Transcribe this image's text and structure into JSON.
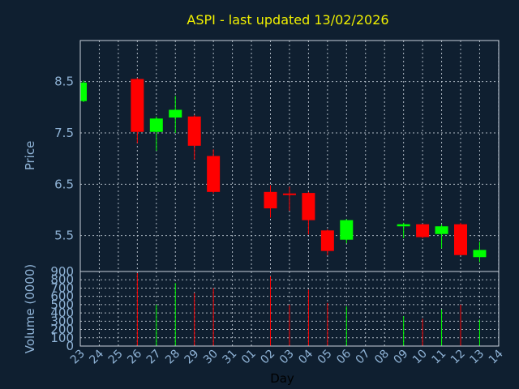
{
  "chart_data": {
    "title": "ASPI - last updated 13/02/2026",
    "xlabel": "Day",
    "x_ticks": [
      "23",
      "24",
      "25",
      "26",
      "27",
      "28",
      "29",
      "30",
      "31",
      "01",
      "02",
      "03",
      "04",
      "05",
      "06",
      "07",
      "08",
      "09",
      "10",
      "11",
      "12",
      "13",
      "14"
    ],
    "colors": {
      "up": "#00ff00",
      "down": "#ff0000",
      "background": "#0f1f30",
      "grid": "#c9d2dc",
      "title": "#f0f000",
      "text": "#8fb3d6"
    },
    "charts": [
      {
        "type": "candlestick",
        "ylabel": "Price",
        "ylim": [
          4.8,
          9.3
        ],
        "y_ticks": [
          "5.5",
          "6.5",
          "7.5",
          "8.5"
        ],
        "grid": true,
        "candles": [
          {
            "x": "23",
            "open": 8.12,
            "high": 8.52,
            "low": 8.1,
            "close": 8.48
          },
          {
            "x": "26",
            "open": 8.55,
            "high": 8.57,
            "low": 7.3,
            "close": 7.52
          },
          {
            "x": "27",
            "open": 7.52,
            "high": 7.82,
            "low": 7.15,
            "close": 7.78
          },
          {
            "x": "28",
            "open": 7.8,
            "high": 8.22,
            "low": 7.5,
            "close": 7.95
          },
          {
            "x": "29",
            "open": 7.82,
            "high": 7.85,
            "low": 6.98,
            "close": 7.25
          },
          {
            "x": "30",
            "open": 7.05,
            "high": 7.18,
            "low": 6.32,
            "close": 6.35
          },
          {
            "x": "02",
            "open": 6.35,
            "high": 6.48,
            "low": 5.85,
            "close": 6.03
          },
          {
            "x": "03",
            "open": 6.32,
            "high": 6.45,
            "low": 5.98,
            "close": 6.3
          },
          {
            "x": "04",
            "open": 6.33,
            "high": 6.35,
            "low": 5.52,
            "close": 5.8
          },
          {
            "x": "05",
            "open": 5.6,
            "high": 5.62,
            "low": 5.12,
            "close": 5.2
          },
          {
            "x": "06",
            "open": 5.42,
            "high": 5.82,
            "low": 5.35,
            "close": 5.8
          },
          {
            "x": "09",
            "open": 5.68,
            "high": 5.75,
            "low": 5.45,
            "close": 5.72
          },
          {
            "x": "10",
            "open": 5.72,
            "high": 5.73,
            "low": 5.45,
            "close": 5.47
          },
          {
            "x": "11",
            "open": 5.53,
            "high": 5.72,
            "low": 5.25,
            "close": 5.68
          },
          {
            "x": "12",
            "open": 5.72,
            "high": 5.75,
            "low": 5.12,
            "close": 5.12
          },
          {
            "x": "13",
            "open": 5.08,
            "high": 5.38,
            "low": 4.98,
            "close": 5.22
          }
        ]
      },
      {
        "type": "bar",
        "ylabel": "Volume (0000)",
        "ylim": [
          0,
          900
        ],
        "y_ticks": [
          "0",
          "100",
          "200",
          "300",
          "400",
          "500",
          "600",
          "700",
          "800",
          "900"
        ],
        "grid": true,
        "values": [
          {
            "x": "26",
            "value": 880,
            "color": "down"
          },
          {
            "x": "27",
            "value": 500,
            "color": "up"
          },
          {
            "x": "28",
            "value": 760,
            "color": "up"
          },
          {
            "x": "29",
            "value": 640,
            "color": "down"
          },
          {
            "x": "30",
            "value": 700,
            "color": "down"
          },
          {
            "x": "02",
            "value": 840,
            "color": "down"
          },
          {
            "x": "03",
            "value": 500,
            "color": "down"
          },
          {
            "x": "04",
            "value": 680,
            "color": "down"
          },
          {
            "x": "05",
            "value": 520,
            "color": "down"
          },
          {
            "x": "06",
            "value": 480,
            "color": "up"
          },
          {
            "x": "09",
            "value": 360,
            "color": "up"
          },
          {
            "x": "10",
            "value": 330,
            "color": "down"
          },
          {
            "x": "11",
            "value": 440,
            "color": "up"
          },
          {
            "x": "12",
            "value": 500,
            "color": "down"
          },
          {
            "x": "13",
            "value": 320,
            "color": "up"
          }
        ]
      }
    ]
  }
}
